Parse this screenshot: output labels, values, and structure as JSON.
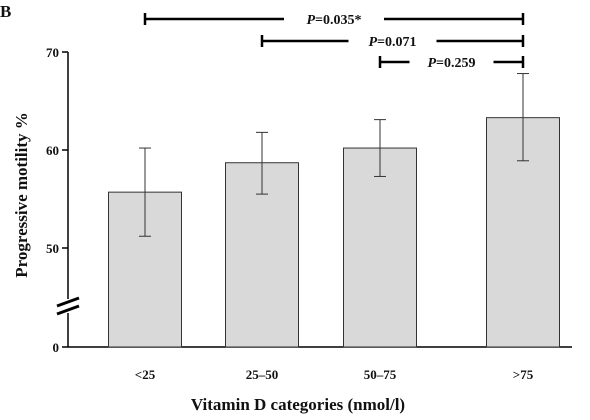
{
  "panel_label": "B",
  "chart_data": {
    "type": "bar",
    "title": "",
    "xlabel": "Vitamin D categories (nmol/l)",
    "ylabel": "Progressive motility %",
    "categories": [
      "<25",
      "25–50",
      "50–75",
      ">75"
    ],
    "values": [
      55.7,
      58.7,
      60.2,
      63.3
    ],
    "error_low": [
      51.2,
      55.5,
      57.3,
      58.9
    ],
    "error_high": [
      60.2,
      61.8,
      63.1,
      67.8
    ],
    "y_ticks": [
      "0",
      "50",
      "60",
      "70"
    ],
    "y_axis_break": true,
    "ylim_displayed": [
      50,
      70
    ],
    "bar_color": "#d9d9d9",
    "comparisons": [
      {
        "p_prefix": "P",
        "p_value": "=0.035*",
        "from_category": "<25",
        "to_category": ">75"
      },
      {
        "p_prefix": "P",
        "p_value": "=0.071",
        "from_category": "25–50",
        "to_category": ">75"
      },
      {
        "p_prefix": "P",
        "p_value": "=0.259",
        "from_category": "50–75",
        "to_category": ">75"
      }
    ]
  }
}
